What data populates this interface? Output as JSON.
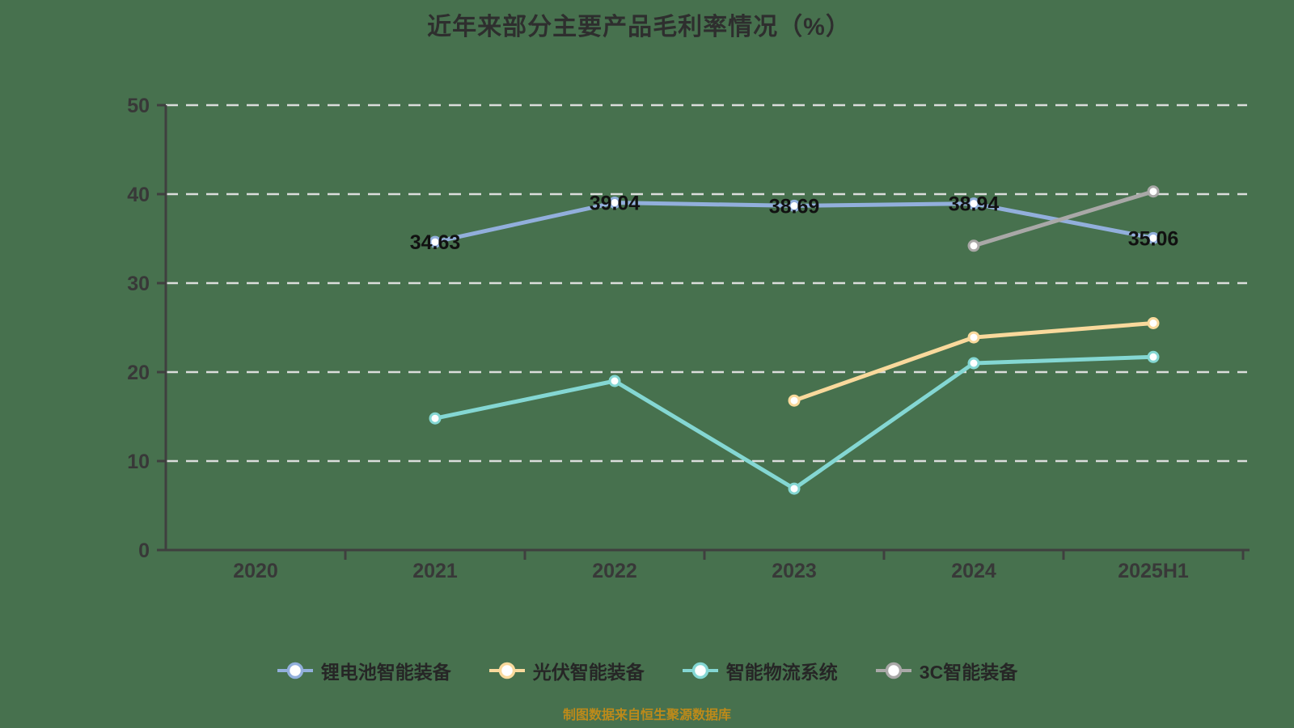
{
  "title": "近年来部分主要产品毛利率情况（%）",
  "footer_note": "制图数据来自恒生聚源数据库",
  "colors": {
    "background": "#47714e",
    "axis": "#3f3f3f",
    "gridline": "#e3e3e3",
    "data_label": "#111111",
    "tick_label": "#383838",
    "marker_fill": "#ffffff"
  },
  "chart_data": {
    "type": "line",
    "title": "近年来部分主要产品毛利率情况（%）",
    "categories": [
      "2020",
      "2021",
      "2022",
      "2023",
      "2024",
      "2025H1"
    ],
    "series": [
      {
        "name": "锂电池智能装备",
        "color": "#92afdc",
        "values": [
          null,
          34.63,
          39.04,
          38.69,
          38.94,
          35.06
        ],
        "show_labels": true
      },
      {
        "name": "光伏智能装备",
        "color": "#f9d99c",
        "values": [
          null,
          null,
          null,
          16.8,
          23.9,
          25.5
        ],
        "show_labels": false
      },
      {
        "name": "智能物流系统",
        "color": "#84d7d3",
        "values": [
          null,
          14.8,
          19.0,
          6.9,
          21.0,
          21.7
        ],
        "show_labels": false
      },
      {
        "name": "3C智能装备",
        "color": "#a9a8a7",
        "values": [
          null,
          null,
          null,
          null,
          34.2,
          40.3
        ],
        "show_labels": false
      }
    ],
    "ylim": [
      0,
      50
    ],
    "yticks": [
      0,
      10,
      20,
      30,
      40,
      50
    ],
    "grid": "horizontal-dashed",
    "legend_position": "bottom"
  }
}
